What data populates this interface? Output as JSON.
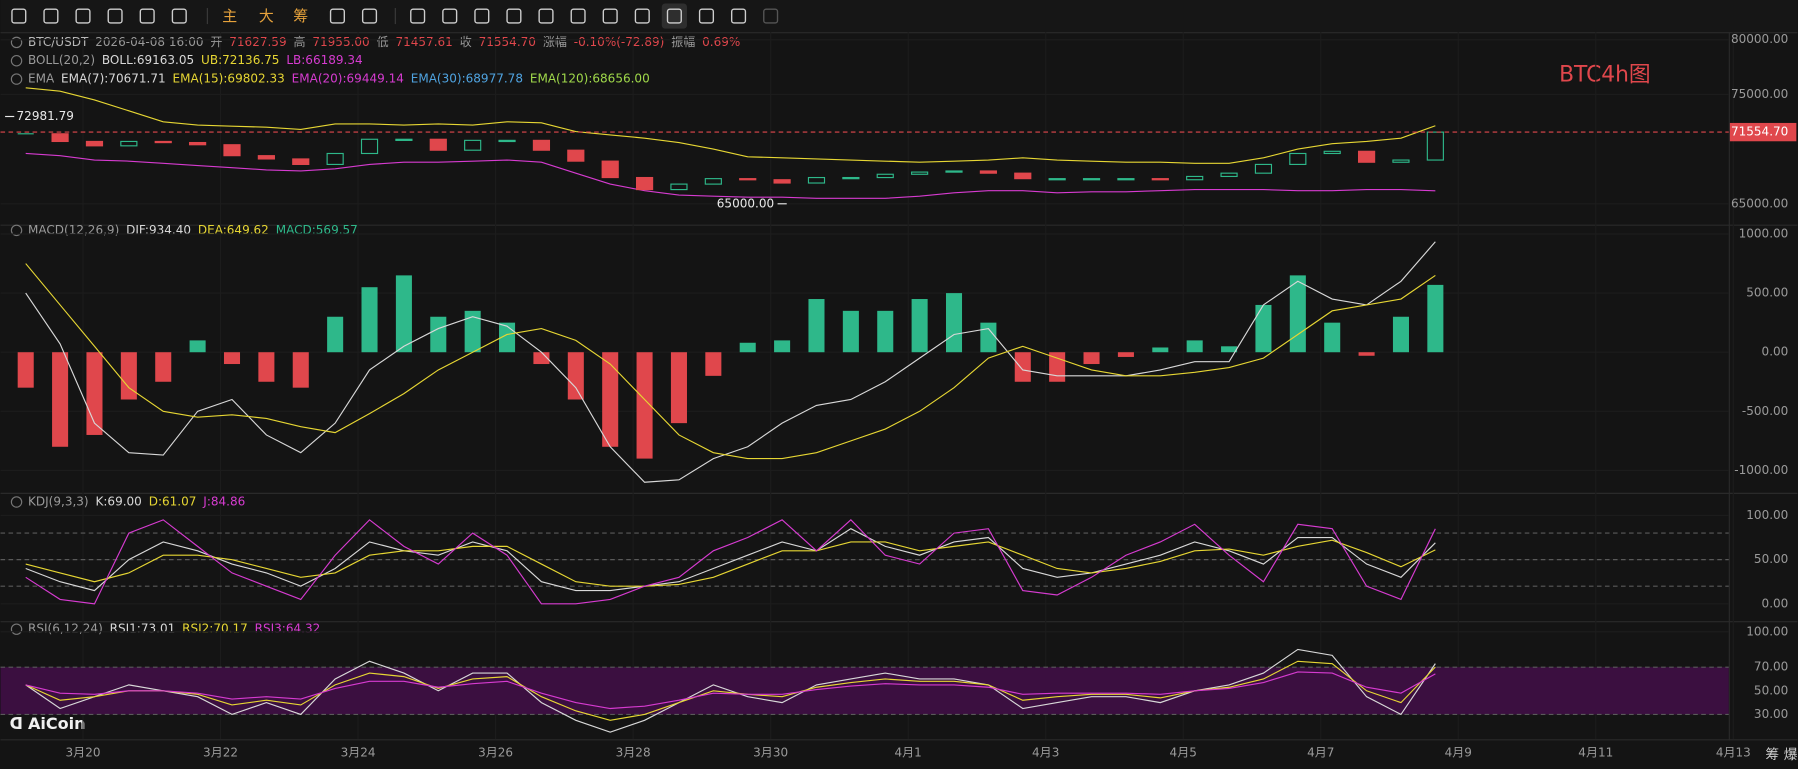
{
  "toolbar": {
    "buttons": [
      "主",
      "大",
      "筹"
    ]
  },
  "watermark": "BTC4h图",
  "logo": "AiCoin",
  "corner_buttons": [
    "筹",
    "爆"
  ],
  "x_axis": {
    "labels": [
      "3月20",
      "3月22",
      "3月24",
      "3月26",
      "3月28",
      "3月30",
      "4月1",
      "4月3",
      "4月5",
      "4月7",
      "4月9",
      "4月11",
      "4月13"
    ]
  },
  "chart_data": [
    {
      "type": "candlestick",
      "header": [
        [
          {
            "text": "BTC/USDT",
            "color": "#b8b8b8"
          },
          {
            "text": "2026-04-08 16:00",
            "color": "#9a9a9a"
          },
          {
            "text": "开",
            "color": "#9a9a9a"
          },
          {
            "text": "71627.59",
            "color": "#e0474c"
          },
          {
            "text": "高",
            "color": "#9a9a9a"
          },
          {
            "text": "71955.00",
            "color": "#e0474c"
          },
          {
            "text": "低",
            "color": "#9a9a9a"
          },
          {
            "text": "71457.61",
            "color": "#e0474c"
          },
          {
            "text": "收",
            "color": "#9a9a9a"
          },
          {
            "text": "71554.70",
            "color": "#e0474c"
          },
          {
            "text": "涨幅",
            "color": "#9a9a9a"
          },
          {
            "text": "-0.10%(-72.89)",
            "color": "#e0474c"
          },
          {
            "text": "振幅",
            "color": "#9a9a9a"
          },
          {
            "text": "0.69%",
            "color": "#e0474c"
          }
        ],
        [
          {
            "text": "BOLL(20,2)",
            "color": "#9a9a9a"
          },
          {
            "text": "BOLL:69163.05",
            "color": "#d8d8d8"
          },
          {
            "text": "UB:72136.75",
            "color": "#e6d633"
          },
          {
            "text": "LB:66189.34",
            "color": "#d63bd0"
          }
        ],
        [
          {
            "text": "EMA",
            "color": "#9a9a9a"
          },
          {
            "text": "EMA(7):70671.71",
            "color": "#d8d8d8"
          },
          {
            "text": "EMA(15):69802.33",
            "color": "#e6d633"
          },
          {
            "text": "EMA(20):69449.14",
            "color": "#d63bd0"
          },
          {
            "text": "EMA(30):68977.78",
            "color": "#4fa3e0"
          },
          {
            "text": "EMA(120):68656.00",
            "color": "#9fd84a"
          }
        ]
      ],
      "ylim": [
        63200,
        80700
      ],
      "yticks": [
        {
          "value": 80000,
          "label": "80000.00"
        },
        {
          "value": 75000,
          "label": "75000.00"
        },
        {
          "value": 65000,
          "label": "65000.00"
        }
      ],
      "close": [
        71400,
        70700,
        70300,
        70700,
        70600,
        70400,
        69400,
        69100,
        68600,
        69600,
        70900,
        70900,
        69900,
        70800,
        70800,
        69900,
        68900,
        67400,
        66300,
        66800,
        67300,
        67200,
        66900,
        67400,
        67400,
        67700,
        67900,
        68000,
        67800,
        67300,
        67300,
        67300,
        67300,
        67200,
        67500,
        67800,
        68600,
        69600,
        69800,
        68800,
        69000,
        71554.7
      ],
      "up_color": "#2eb88a",
      "down_color": "#e0474c",
      "bands": [
        {
          "values": [
            75600,
            75300,
            74500,
            73500,
            72500,
            72200,
            72100,
            72000,
            71800,
            72300,
            72300,
            72200,
            72300,
            72200,
            72500,
            72400,
            71600,
            71300,
            71000,
            70600,
            70000,
            69300,
            69200,
            69100,
            69000,
            68900,
            68800,
            68900,
            69000,
            69200,
            69000,
            68900,
            68800,
            68800,
            68700,
            68700,
            69200,
            70000,
            70500,
            70700,
            71000,
            72136.75
          ],
          "color": "#e6d633"
        },
        {
          "values": [
            69600,
            69400,
            69000,
            68900,
            68700,
            68500,
            68300,
            68100,
            68000,
            68200,
            68600,
            68800,
            68800,
            68900,
            69000,
            68800,
            67800,
            66800,
            66200,
            65800,
            65700,
            65600,
            65600,
            65500,
            65500,
            65500,
            65700,
            66000,
            66200,
            66200,
            66000,
            66100,
            66100,
            66200,
            66300,
            66300,
            66300,
            66200,
            66200,
            66300,
            66300,
            66189.34
          ],
          "color": "#d63bd0"
        }
      ],
      "annotations": [
        {
          "value": 72981.79,
          "label": "72981.79"
        },
        {
          "value": 65000,
          "label": "65000.00"
        }
      ],
      "last_price": {
        "value": 71554.7,
        "label": "71554.70",
        "color": "#e0474c"
      }
    },
    {
      "type": "macd",
      "header": [
        [
          {
            "text": "MACD(12,26,9)",
            "color": "#9a9a9a"
          },
          {
            "text": "DIF:934.40",
            "color": "#d8d8d8"
          },
          {
            "text": "DEA:649.62",
            "color": "#e6d633"
          },
          {
            "text": "MACD:569.57",
            "color": "#2eb88a"
          }
        ]
      ],
      "ylim": [
        -1170,
        1060
      ],
      "yticks": [
        {
          "value": 1000,
          "label": "1000.00"
        },
        {
          "value": 500,
          "label": "500.00"
        },
        {
          "value": 0,
          "label": "0.00"
        },
        {
          "value": -500,
          "label": "-500.00"
        },
        {
          "value": -1000,
          "label": "-1000.00"
        }
      ],
      "histogram": {
        "values": [
          -300,
          -800,
          -700,
          -400,
          -250,
          100,
          -100,
          -250,
          -300,
          300,
          550,
          650,
          300,
          350,
          250,
          -100,
          -400,
          -800,
          -900,
          -600,
          -200,
          80,
          100,
          450,
          350,
          350,
          450,
          500,
          250,
          -250,
          -250,
          -100,
          -40,
          40,
          100,
          50,
          400,
          650,
          250,
          -30,
          300,
          569.57
        ],
        "up_color": "#2eb88a",
        "down_color": "#e0474c"
      },
      "series": [
        {
          "values": [
            500,
            70,
            -600,
            -850,
            -870,
            -500,
            -400,
            -700,
            -850,
            -600,
            -150,
            50,
            200,
            300,
            220,
            0,
            -300,
            -800,
            -1100,
            -1080,
            -900,
            -800,
            -600,
            -450,
            -400,
            -250,
            -50,
            150,
            200,
            -150,
            -200,
            -200,
            -200,
            -150,
            -80,
            -80,
            400,
            600,
            450,
            400,
            600,
            934.4
          ],
          "color": "#d8d8d8"
        },
        {
          "values": [
            750,
            400,
            50,
            -300,
            -500,
            -550,
            -530,
            -560,
            -630,
            -680,
            -520,
            -350,
            -150,
            0,
            150,
            200,
            100,
            -100,
            -400,
            -700,
            -850,
            -900,
            -900,
            -850,
            -750,
            -650,
            -500,
            -300,
            -50,
            50,
            -50,
            -150,
            -200,
            -200,
            -170,
            -130,
            -50,
            150,
            350,
            400,
            450,
            649.62
          ],
          "color": "#e6d633"
        }
      ]
    },
    {
      "type": "line",
      "header": [
        [
          {
            "text": "KDJ(9,3,3)",
            "color": "#9a9a9a"
          },
          {
            "text": "K:69.00",
            "color": "#d8d8d8"
          },
          {
            "text": "D:61.07",
            "color": "#e6d633"
          },
          {
            "text": "J:84.86",
            "color": "#d63bd0"
          }
        ]
      ],
      "ylim": [
        -17,
        123
      ],
      "yticks": [
        {
          "value": 100,
          "label": "100.00"
        },
        {
          "value": 50,
          "label": "50.00"
        },
        {
          "value": 0,
          "label": "0.00"
        }
      ],
      "guides": [
        80,
        50,
        20
      ],
      "series": [
        {
          "values": [
            40,
            25,
            15,
            50,
            70,
            60,
            45,
            35,
            20,
            40,
            70,
            60,
            55,
            70,
            60,
            25,
            15,
            15,
            20,
            25,
            40,
            55,
            70,
            60,
            85,
            65,
            55,
            70,
            75,
            40,
            30,
            35,
            45,
            55,
            70,
            60,
            45,
            75,
            75,
            45,
            30,
            69
          ],
          "color": "#d8d8d8"
        },
        {
          "values": [
            45,
            35,
            25,
            35,
            55,
            55,
            50,
            40,
            30,
            35,
            55,
            60,
            60,
            65,
            65,
            45,
            25,
            20,
            20,
            22,
            30,
            45,
            60,
            60,
            70,
            70,
            60,
            65,
            70,
            55,
            40,
            35,
            40,
            48,
            60,
            62,
            55,
            65,
            72,
            58,
            42,
            61.07
          ],
          "color": "#e6d633"
        },
        {
          "values": [
            30,
            5,
            0,
            80,
            95,
            65,
            35,
            20,
            5,
            55,
            95,
            65,
            45,
            80,
            55,
            0,
            0,
            5,
            20,
            30,
            60,
            75,
            95,
            60,
            95,
            55,
            45,
            80,
            85,
            15,
            10,
            30,
            55,
            70,
            90,
            55,
            25,
            90,
            85,
            20,
            5,
            84.86
          ],
          "color": "#d63bd0"
        }
      ]
    },
    {
      "type": "line",
      "header": [
        [
          {
            "text": "RSI(6,12,24)",
            "color": "#9a9a9a"
          },
          {
            "text": "RSI1:73.01",
            "color": "#d8d8d8"
          },
          {
            "text": "RSI2:70.17",
            "color": "#e6d633"
          },
          {
            "text": "RSI3:64.32",
            "color": "#d63bd0"
          }
        ]
      ],
      "ylim": [
        9,
        108
      ],
      "yticks": [
        {
          "value": 100,
          "label": "100.00"
        },
        {
          "value": 70,
          "label": "70.00"
        },
        {
          "value": 50,
          "label": "50.00"
        },
        {
          "value": 30,
          "label": "30.00"
        }
      ],
      "band": [
        70,
        30
      ],
      "band_color": "#3b0f40",
      "guides": [
        70,
        30
      ],
      "series": [
        {
          "values": [
            55,
            35,
            45,
            55,
            50,
            45,
            30,
            40,
            30,
            60,
            75,
            65,
            50,
            65,
            65,
            40,
            25,
            15,
            25,
            40,
            55,
            45,
            40,
            55,
            60,
            65,
            60,
            60,
            55,
            35,
            40,
            45,
            45,
            40,
            50,
            55,
            65,
            85,
            80,
            45,
            30,
            73.01
          ],
          "color": "#d8d8d8"
        },
        {
          "values": [
            55,
            42,
            45,
            50,
            50,
            47,
            38,
            42,
            38,
            55,
            65,
            62,
            52,
            60,
            62,
            45,
            33,
            25,
            30,
            40,
            50,
            47,
            45,
            53,
            57,
            60,
            58,
            58,
            55,
            42,
            45,
            47,
            47,
            44,
            50,
            53,
            60,
            75,
            73,
            50,
            40,
            70.17
          ],
          "color": "#e6d633"
        },
        {
          "values": [
            55,
            48,
            47,
            50,
            50,
            48,
            43,
            45,
            43,
            52,
            58,
            58,
            53,
            56,
            58,
            48,
            40,
            35,
            37,
            42,
            48,
            47,
            47,
            51,
            54,
            56,
            55,
            55,
            53,
            47,
            48,
            48,
            48,
            47,
            50,
            52,
            57,
            66,
            65,
            53,
            48,
            64.32
          ],
          "color": "#d63bd0"
        }
      ]
    }
  ]
}
